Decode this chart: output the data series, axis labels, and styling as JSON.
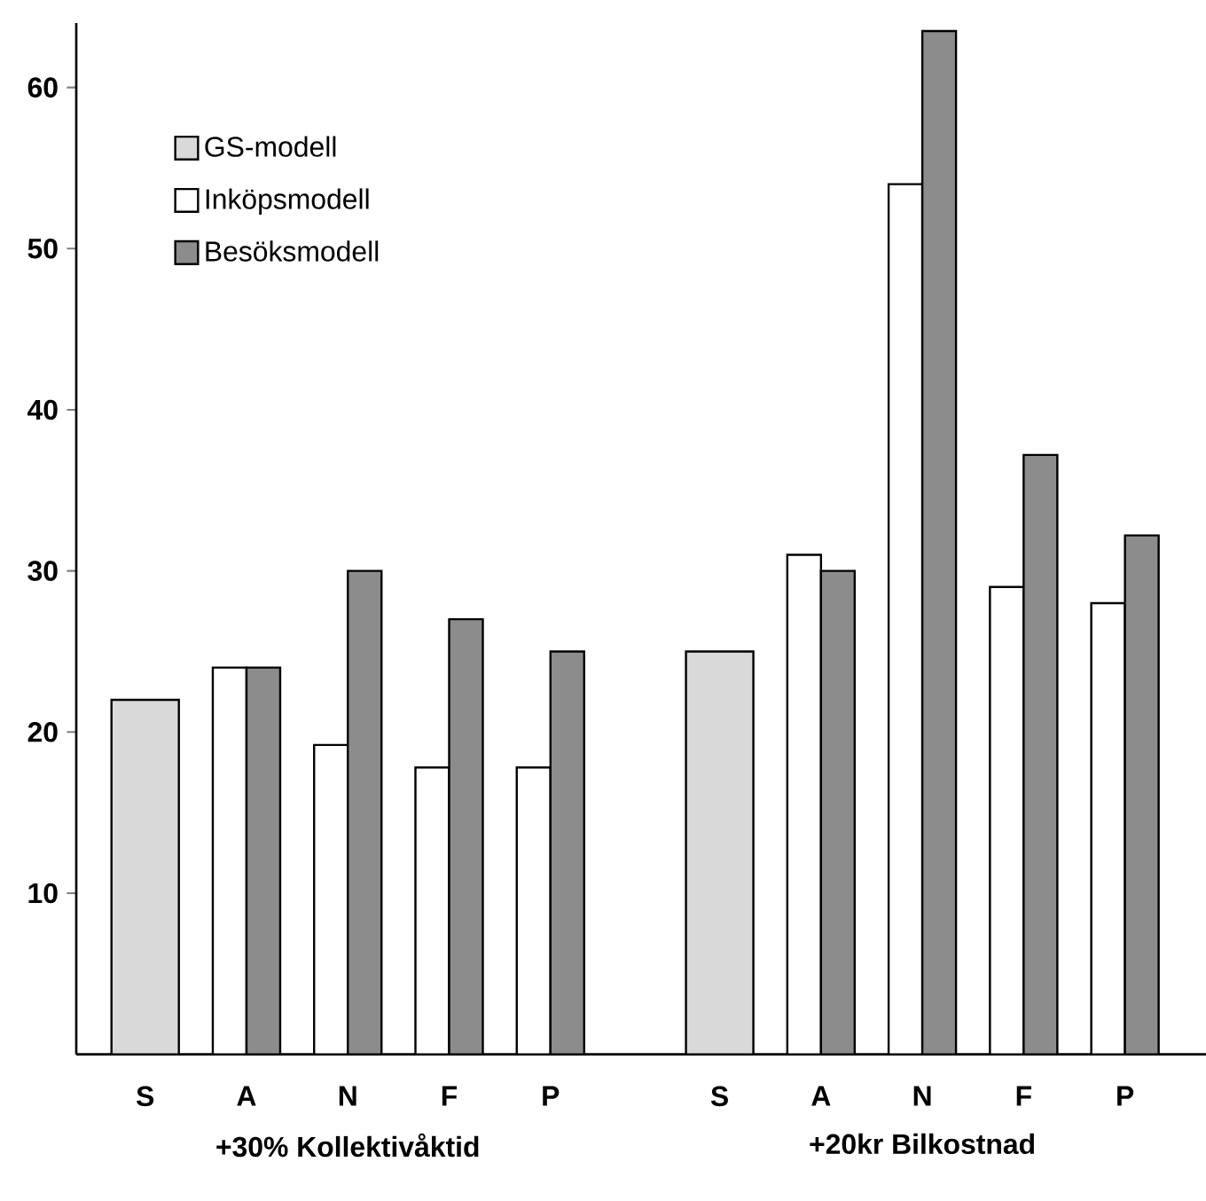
{
  "chart_data": {
    "type": "bar",
    "categories": [
      "S",
      "A",
      "N",
      "F",
      "P",
      "S",
      "A",
      "N",
      "F",
      "P"
    ],
    "series": [
      {
        "name": "GS-modell",
        "color": "#d9d9d9",
        "values": [
          22,
          null,
          null,
          null,
          null,
          25,
          null,
          null,
          null,
          null
        ]
      },
      {
        "name": "Inköpsmodell",
        "color": "#ffffff",
        "values": [
          null,
          24,
          19.2,
          17.8,
          17.8,
          null,
          31,
          54,
          29,
          28
        ]
      },
      {
        "name": "Besöksmodell",
        "color": "#8c8c8c",
        "values": [
          null,
          24,
          30,
          27,
          25,
          null,
          30,
          63.5,
          37.2,
          32.2
        ]
      }
    ],
    "ylim": [
      0,
      64
    ],
    "yticks": [
      10,
      20,
      30,
      40,
      50,
      60
    ],
    "annotations": [
      "+30% Kollektivåktid",
      "+20kr Bilkostnad"
    ],
    "legend": "top left",
    "grid": false
  }
}
